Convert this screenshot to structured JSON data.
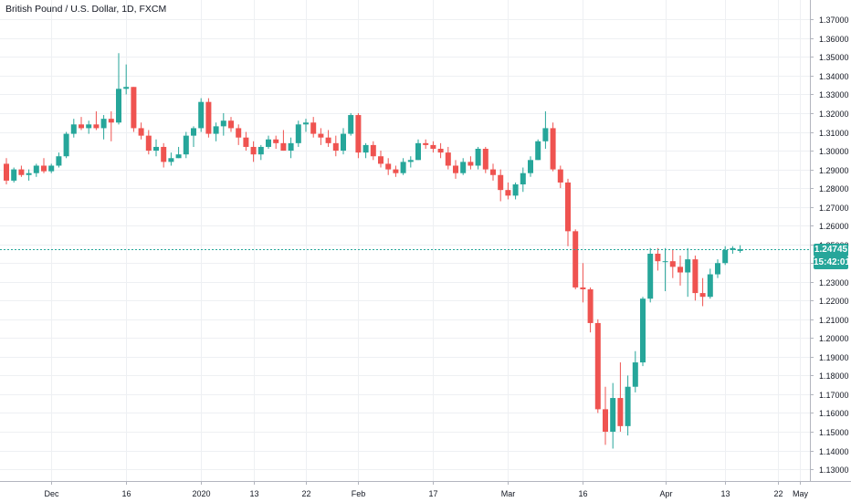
{
  "chart_data": {
    "type": "candlestick",
    "title": "British Pound / U.S. Dollar, 1D, FXCM",
    "ylim": [
      1.1237,
      1.3804
    ],
    "y_ticks": [
      "1.37000",
      "1.36000",
      "1.35000",
      "1.34000",
      "1.33000",
      "1.32000",
      "1.31000",
      "1.30000",
      "1.29000",
      "1.28000",
      "1.27000",
      "1.26000",
      "1.25000",
      "1.24000",
      "1.23000",
      "1.22000",
      "1.21000",
      "1.20000",
      "1.19000",
      "1.18000",
      "1.17000",
      "1.16000",
      "1.15000",
      "1.14000",
      "1.13000"
    ],
    "x_ticks": [
      {
        "label": "Dec",
        "index": 6
      },
      {
        "label": "16",
        "index": 16
      },
      {
        "label": "2020",
        "index": 26
      },
      {
        "label": "13",
        "index": 33
      },
      {
        "label": "22",
        "index": 40
      },
      {
        "label": "Feb",
        "index": 47
      },
      {
        "label": "17",
        "index": 57
      },
      {
        "label": "Mar",
        "index": 67
      },
      {
        "label": "16",
        "index": 77
      },
      {
        "label": "Apr",
        "index": 88
      },
      {
        "label": "13",
        "index": 96
      },
      {
        "label": "22",
        "index": 103
      },
      {
        "label": "May",
        "index": 106
      }
    ],
    "last_price": "1.24745",
    "countdown": "15:42:01",
    "colors": {
      "up": "#26a69a",
      "down": "#ef5350",
      "grid": "#eef0f3",
      "last_line": "#26a69a",
      "countdown_bg": "#26a69a"
    },
    "candles": [
      {
        "o": 1.293,
        "h": 1.296,
        "l": 1.282,
        "c": 1.284
      },
      {
        "o": 1.284,
        "h": 1.291,
        "l": 1.283,
        "c": 1.29
      },
      {
        "o": 1.29,
        "h": 1.292,
        "l": 1.286,
        "c": 1.287
      },
      {
        "o": 1.287,
        "h": 1.29,
        "l": 1.284,
        "c": 1.288
      },
      {
        "o": 1.288,
        "h": 1.293,
        "l": 1.286,
        "c": 1.292
      },
      {
        "o": 1.292,
        "h": 1.296,
        "l": 1.288,
        "c": 1.289
      },
      {
        "o": 1.289,
        "h": 1.293,
        "l": 1.288,
        "c": 1.292
      },
      {
        "o": 1.292,
        "h": 1.299,
        "l": 1.291,
        "c": 1.297
      },
      {
        "o": 1.297,
        "h": 1.31,
        "l": 1.296,
        "c": 1.309
      },
      {
        "o": 1.309,
        "h": 1.317,
        "l": 1.307,
        "c": 1.314
      },
      {
        "o": 1.314,
        "h": 1.318,
        "l": 1.311,
        "c": 1.312
      },
      {
        "o": 1.312,
        "h": 1.316,
        "l": 1.309,
        "c": 1.314
      },
      {
        "o": 1.314,
        "h": 1.321,
        "l": 1.311,
        "c": 1.312
      },
      {
        "o": 1.312,
        "h": 1.319,
        "l": 1.306,
        "c": 1.317
      },
      {
        "o": 1.317,
        "h": 1.321,
        "l": 1.305,
        "c": 1.315
      },
      {
        "o": 1.315,
        "h": 1.352,
        "l": 1.314,
        "c": 1.333
      },
      {
        "o": 1.333,
        "h": 1.346,
        "l": 1.33,
        "c": 1.334
      },
      {
        "o": 1.334,
        "h": 1.334,
        "l": 1.31,
        "c": 1.312
      },
      {
        "o": 1.312,
        "h": 1.315,
        "l": 1.306,
        "c": 1.308
      },
      {
        "o": 1.308,
        "h": 1.311,
        "l": 1.298,
        "c": 1.3
      },
      {
        "o": 1.3,
        "h": 1.306,
        "l": 1.297,
        "c": 1.302
      },
      {
        "o": 1.302,
        "h": 1.304,
        "l": 1.291,
        "c": 1.294
      },
      {
        "o": 1.294,
        "h": 1.299,
        "l": 1.292,
        "c": 1.296
      },
      {
        "o": 1.296,
        "h": 1.302,
        "l": 1.296,
        "c": 1.298
      },
      {
        "o": 1.298,
        "h": 1.31,
        "l": 1.296,
        "c": 1.308
      },
      {
        "o": 1.308,
        "h": 1.313,
        "l": 1.302,
        "c": 1.312
      },
      {
        "o": 1.312,
        "h": 1.328,
        "l": 1.31,
        "c": 1.326
      },
      {
        "o": 1.326,
        "h": 1.328,
        "l": 1.307,
        "c": 1.309
      },
      {
        "o": 1.309,
        "h": 1.315,
        "l": 1.305,
        "c": 1.313
      },
      {
        "o": 1.313,
        "h": 1.32,
        "l": 1.308,
        "c": 1.316
      },
      {
        "o": 1.316,
        "h": 1.318,
        "l": 1.31,
        "c": 1.312
      },
      {
        "o": 1.312,
        "h": 1.314,
        "l": 1.303,
        "c": 1.307
      },
      {
        "o": 1.307,
        "h": 1.31,
        "l": 1.3,
        "c": 1.302
      },
      {
        "o": 1.302,
        "h": 1.305,
        "l": 1.294,
        "c": 1.298
      },
      {
        "o": 1.298,
        "h": 1.303,
        "l": 1.295,
        "c": 1.302
      },
      {
        "o": 1.302,
        "h": 1.308,
        "l": 1.301,
        "c": 1.306
      },
      {
        "o": 1.306,
        "h": 1.308,
        "l": 1.301,
        "c": 1.304
      },
      {
        "o": 1.304,
        "h": 1.311,
        "l": 1.3,
        "c": 1.3
      },
      {
        "o": 1.3,
        "h": 1.307,
        "l": 1.296,
        "c": 1.304
      },
      {
        "o": 1.304,
        "h": 1.316,
        "l": 1.302,
        "c": 1.314
      },
      {
        "o": 1.314,
        "h": 1.317,
        "l": 1.31,
        "c": 1.315
      },
      {
        "o": 1.315,
        "h": 1.318,
        "l": 1.307,
        "c": 1.309
      },
      {
        "o": 1.309,
        "h": 1.312,
        "l": 1.303,
        "c": 1.307
      },
      {
        "o": 1.307,
        "h": 1.311,
        "l": 1.302,
        "c": 1.304
      },
      {
        "o": 1.304,
        "h": 1.308,
        "l": 1.297,
        "c": 1.3
      },
      {
        "o": 1.3,
        "h": 1.312,
        "l": 1.298,
        "c": 1.309
      },
      {
        "o": 1.309,
        "h": 1.32,
        "l": 1.308,
        "c": 1.319
      },
      {
        "o": 1.319,
        "h": 1.32,
        "l": 1.296,
        "c": 1.299
      },
      {
        "o": 1.299,
        "h": 1.304,
        "l": 1.296,
        "c": 1.303
      },
      {
        "o": 1.303,
        "h": 1.305,
        "l": 1.295,
        "c": 1.297
      },
      {
        "o": 1.297,
        "h": 1.3,
        "l": 1.291,
        "c": 1.293
      },
      {
        "o": 1.293,
        "h": 1.296,
        "l": 1.287,
        "c": 1.29
      },
      {
        "o": 1.29,
        "h": 1.292,
        "l": 1.286,
        "c": 1.288
      },
      {
        "o": 1.288,
        "h": 1.296,
        "l": 1.287,
        "c": 1.294
      },
      {
        "o": 1.294,
        "h": 1.297,
        "l": 1.291,
        "c": 1.295
      },
      {
        "o": 1.295,
        "h": 1.306,
        "l": 1.295,
        "c": 1.304
      },
      {
        "o": 1.304,
        "h": 1.306,
        "l": 1.301,
        "c": 1.303
      },
      {
        "o": 1.303,
        "h": 1.305,
        "l": 1.299,
        "c": 1.301
      },
      {
        "o": 1.301,
        "h": 1.304,
        "l": 1.296,
        "c": 1.299
      },
      {
        "o": 1.299,
        "h": 1.302,
        "l": 1.29,
        "c": 1.292
      },
      {
        "o": 1.292,
        "h": 1.295,
        "l": 1.285,
        "c": 1.288
      },
      {
        "o": 1.288,
        "h": 1.296,
        "l": 1.287,
        "c": 1.294
      },
      {
        "o": 1.294,
        "h": 1.297,
        "l": 1.29,
        "c": 1.292
      },
      {
        "o": 1.292,
        "h": 1.302,
        "l": 1.29,
        "c": 1.301
      },
      {
        "o": 1.301,
        "h": 1.302,
        "l": 1.288,
        "c": 1.29
      },
      {
        "o": 1.29,
        "h": 1.293,
        "l": 1.284,
        "c": 1.287
      },
      {
        "o": 1.287,
        "h": 1.29,
        "l": 1.273,
        "c": 1.279
      },
      {
        "o": 1.279,
        "h": 1.283,
        "l": 1.274,
        "c": 1.276
      },
      {
        "o": 1.276,
        "h": 1.283,
        "l": 1.274,
        "c": 1.282
      },
      {
        "o": 1.282,
        "h": 1.291,
        "l": 1.278,
        "c": 1.288
      },
      {
        "o": 1.288,
        "h": 1.297,
        "l": 1.286,
        "c": 1.295
      },
      {
        "o": 1.295,
        "h": 1.306,
        "l": 1.295,
        "c": 1.305
      },
      {
        "o": 1.305,
        "h": 1.321,
        "l": 1.301,
        "c": 1.312
      },
      {
        "o": 1.312,
        "h": 1.315,
        "l": 1.289,
        "c": 1.29
      },
      {
        "o": 1.29,
        "h": 1.292,
        "l": 1.28,
        "c": 1.283
      },
      {
        "o": 1.283,
        "h": 1.285,
        "l": 1.249,
        "c": 1.257
      },
      {
        "o": 1.257,
        "h": 1.258,
        "l": 1.226,
        "c": 1.227
      },
      {
        "o": 1.227,
        "h": 1.24,
        "l": 1.219,
        "c": 1.226
      },
      {
        "o": 1.226,
        "h": 1.227,
        "l": 1.203,
        "c": 1.208
      },
      {
        "o": 1.208,
        "h": 1.21,
        "l": 1.16,
        "c": 1.162
      },
      {
        "o": 1.162,
        "h": 1.174,
        "l": 1.143,
        "c": 1.15
      },
      {
        "o": 1.15,
        "h": 1.176,
        "l": 1.141,
        "c": 1.168
      },
      {
        "o": 1.168,
        "h": 1.187,
        "l": 1.15,
        "c": 1.153
      },
      {
        "o": 1.153,
        "h": 1.18,
        "l": 1.148,
        "c": 1.174
      },
      {
        "o": 1.174,
        "h": 1.193,
        "l": 1.171,
        "c": 1.187
      },
      {
        "o": 1.187,
        "h": 1.222,
        "l": 1.185,
        "c": 1.221
      },
      {
        "o": 1.221,
        "h": 1.248,
        "l": 1.219,
        "c": 1.245
      },
      {
        "o": 1.245,
        "h": 1.248,
        "l": 1.236,
        "c": 1.241
      },
      {
        "o": 1.241,
        "h": 1.248,
        "l": 1.225,
        "c": 1.241
      },
      {
        "o": 1.241,
        "h": 1.247,
        "l": 1.232,
        "c": 1.238
      },
      {
        "o": 1.238,
        "h": 1.244,
        "l": 1.228,
        "c": 1.235
      },
      {
        "o": 1.235,
        "h": 1.248,
        "l": 1.222,
        "c": 1.242
      },
      {
        "o": 1.242,
        "h": 1.244,
        "l": 1.22,
        "c": 1.224
      },
      {
        "o": 1.224,
        "h": 1.232,
        "l": 1.217,
        "c": 1.222
      },
      {
        "o": 1.222,
        "h": 1.237,
        "l": 1.221,
        "c": 1.234
      },
      {
        "o": 1.234,
        "h": 1.242,
        "l": 1.232,
        "c": 1.24
      },
      {
        "o": 1.24,
        "h": 1.249,
        "l": 1.239,
        "c": 1.247
      },
      {
        "o": 1.247,
        "h": 1.249,
        "l": 1.245,
        "c": 1.248
      },
      {
        "o": 1.2465,
        "h": 1.2495,
        "l": 1.2455,
        "c": 1.24745
      }
    ]
  }
}
